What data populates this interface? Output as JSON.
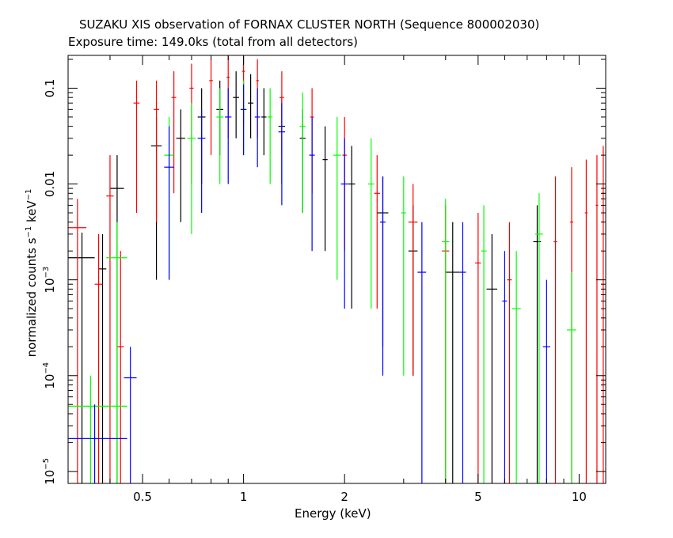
{
  "chart_data": {
    "type": "scatter",
    "title": "SUZAKU XIS observation of FORNAX CLUSTER NORTH (Sequence 800002030)",
    "subtitle": "Exposure time: 149.0ks (total from all detectors)",
    "xlabel": "Energy (keV)",
    "ylabel": {
      "base": "normalized counts s",
      "exp1": "−1",
      "mid": " keV",
      "exp2": "−1"
    },
    "x_scale": "log",
    "y_scale": "log",
    "xlim": [
      0.3,
      12
    ],
    "ylim": [
      7.5e-06,
      0.22
    ],
    "x_ticks": [
      {
        "value": 0.5,
        "label": "0.5"
      },
      {
        "value": 1,
        "label": "1"
      },
      {
        "value": 2,
        "label": "2"
      },
      {
        "value": 5,
        "label": "5"
      },
      {
        "value": 10,
        "label": "10"
      }
    ],
    "y_ticks": [
      {
        "value": 0.1,
        "label": "0.1"
      },
      {
        "value": 0.01,
        "label": "0.01"
      },
      {
        "value": 0.001,
        "label": "10",
        "exp": "−3"
      },
      {
        "value": 0.0001,
        "label": "10",
        "exp": "−4"
      },
      {
        "value": 1e-05,
        "label": "10",
        "exp": "−5"
      }
    ],
    "grid": false,
    "colors": {
      "black": "#000000",
      "red": "#ff0000",
      "green": "#00ff00",
      "blue": "#0000ff"
    },
    "series": [
      {
        "color": "#000000",
        "points": [
          [
            0.33,
            0.0017,
            0.0,
            0.0031,
            0.36,
            0.3
          ],
          [
            0.38,
            0.0013,
            0.0,
            0.003,
            0.39,
            0.37
          ],
          [
            0.42,
            0.009,
            0.0,
            0.02,
            0.44,
            0.4
          ],
          [
            0.55,
            0.025,
            0.001,
            0.05,
            0.57,
            0.53
          ],
          [
            0.65,
            0.03,
            0.004,
            0.06,
            0.67,
            0.63
          ],
          [
            0.75,
            0.05,
            0.01,
            0.1,
            0.77,
            0.73
          ],
          [
            0.85,
            0.06,
            0.02,
            0.12,
            0.87,
            0.83
          ],
          [
            0.95,
            0.08,
            0.03,
            0.15,
            0.97,
            0.93
          ],
          [
            1.05,
            0.07,
            0.03,
            0.14,
            1.07,
            1.03
          ],
          [
            1.15,
            0.05,
            0.02,
            0.1,
            1.17,
            1.13
          ],
          [
            1.3,
            0.04,
            0.01,
            0.08,
            1.33,
            1.27
          ],
          [
            1.5,
            0.03,
            0.005,
            0.06,
            1.53,
            1.47
          ],
          [
            1.75,
            0.018,
            0.002,
            0.04,
            1.78,
            1.72
          ],
          [
            2.1,
            0.01,
            0.0005,
            0.025,
            2.15,
            2.05
          ],
          [
            2.6,
            0.005,
            0.0002,
            0.012,
            2.7,
            2.5
          ],
          [
            3.2,
            0.002,
            0.0001,
            0.006,
            3.3,
            3.1
          ],
          [
            4.2,
            0.0012,
            0.0,
            0.004,
            4.4,
            4.0
          ],
          [
            5.5,
            0.0008,
            0.0,
            0.003,
            5.7,
            5.3
          ],
          [
            7.5,
            0.0025,
            0.0,
            0.006,
            7.7,
            7.3
          ]
        ]
      },
      {
        "color": "#ff0000",
        "points": [
          [
            0.32,
            0.0035,
            0.0,
            0.007,
            0.34,
            0.3
          ],
          [
            0.37,
            0.0009,
            0.0,
            0.003,
            0.38,
            0.36
          ],
          [
            0.4,
            0.0075,
            0.0,
            0.02,
            0.41,
            0.39
          ],
          [
            0.43,
            0.0002,
            0.0,
            0.002,
            0.44,
            0.42
          ],
          [
            0.48,
            0.07,
            0.005,
            0.12,
            0.49,
            0.47
          ],
          [
            0.55,
            0.06,
            0.004,
            0.12,
            0.56,
            0.54
          ],
          [
            0.62,
            0.08,
            0.008,
            0.15,
            0.63,
            0.61
          ],
          [
            0.7,
            0.1,
            0.01,
            0.18,
            0.71,
            0.69
          ],
          [
            0.8,
            0.12,
            0.02,
            0.2,
            0.81,
            0.79
          ],
          [
            0.9,
            0.13,
            0.03,
            0.22,
            0.91,
            0.89
          ],
          [
            1.0,
            0.15,
            0.04,
            0.22,
            1.01,
            0.99
          ],
          [
            1.1,
            0.12,
            0.03,
            0.2,
            1.11,
            1.09
          ],
          [
            1.3,
            0.08,
            0.02,
            0.15,
            1.32,
            1.28
          ],
          [
            1.6,
            0.05,
            0.008,
            0.1,
            1.62,
            1.58
          ],
          [
            2.0,
            0.02,
            0.002,
            0.05,
            2.03,
            1.97
          ],
          [
            2.5,
            0.008,
            0.0005,
            0.02,
            2.55,
            2.45
          ],
          [
            3.2,
            0.004,
            0.0001,
            0.01,
            3.3,
            3.1
          ],
          [
            4.0,
            0.002,
            0.0,
            0.006,
            4.1,
            3.9
          ],
          [
            5.0,
            0.0015,
            0.0,
            0.005,
            5.1,
            4.9
          ],
          [
            6.2,
            0.001,
            0.0,
            0.004,
            6.3,
            6.1
          ],
          [
            8.5,
            0.0025,
            0.0,
            0.012,
            8.6,
            8.4
          ],
          [
            9.5,
            0.004,
            0.0,
            0.015,
            9.6,
            9.4
          ],
          [
            10.5,
            0.005,
            0.0,
            0.018,
            10.6,
            10.4
          ],
          [
            11.3,
            0.006,
            0.0,
            0.02,
            11.4,
            11.2
          ],
          [
            11.8,
            0.008,
            0.0,
            0.025,
            11.9,
            11.7
          ]
        ]
      },
      {
        "color": "#00ff00",
        "points": [
          [
            0.35,
            4.8e-05,
            0.0,
            0.0001,
            0.45,
            0.3
          ],
          [
            0.42,
            0.0017,
            0.0,
            0.004,
            0.45,
            0.39
          ],
          [
            0.6,
            0.02,
            0.001,
            0.05,
            0.62,
            0.58
          ],
          [
            0.7,
            0.03,
            0.003,
            0.07,
            0.72,
            0.68
          ],
          [
            0.85,
            0.05,
            0.01,
            0.1,
            0.87,
            0.83
          ],
          [
            1.0,
            0.06,
            0.02,
            0.12,
            1.02,
            0.98
          ],
          [
            1.2,
            0.05,
            0.01,
            0.1,
            1.22,
            1.18
          ],
          [
            1.5,
            0.04,
            0.005,
            0.09,
            1.53,
            1.47
          ],
          [
            1.9,
            0.02,
            0.001,
            0.05,
            1.95,
            1.85
          ],
          [
            2.4,
            0.01,
            0.0005,
            0.03,
            2.45,
            2.35
          ],
          [
            3.0,
            0.005,
            0.0001,
            0.012,
            3.05,
            2.95
          ],
          [
            4.0,
            0.0025,
            0.0,
            0.007,
            4.1,
            3.9
          ],
          [
            5.2,
            0.002,
            0.0,
            0.006,
            5.3,
            5.1
          ],
          [
            6.5,
            0.0005,
            0.0,
            0.002,
            6.7,
            6.3
          ],
          [
            7.6,
            0.003,
            0.0,
            0.008,
            7.8,
            7.4
          ],
          [
            9.5,
            0.0003,
            0.0,
            0.0012,
            9.8,
            9.2
          ]
        ]
      },
      {
        "color": "#0000ff",
        "points": [
          [
            0.36,
            2.2e-05,
            0.0,
            5e-05,
            0.45,
            0.3
          ],
          [
            0.46,
            9.5e-05,
            0.0,
            0.0002,
            0.48,
            0.44
          ],
          [
            0.6,
            0.015,
            0.001,
            0.04,
            0.62,
            0.58
          ],
          [
            0.75,
            0.03,
            0.005,
            0.06,
            0.77,
            0.73
          ],
          [
            0.9,
            0.05,
            0.01,
            0.1,
            0.92,
            0.88
          ],
          [
            1.0,
            0.06,
            0.02,
            0.11,
            1.02,
            0.98
          ],
          [
            1.1,
            0.05,
            0.015,
            0.1,
            1.12,
            1.08
          ],
          [
            1.3,
            0.035,
            0.006,
            0.07,
            1.33,
            1.27
          ],
          [
            1.6,
            0.02,
            0.002,
            0.05,
            1.63,
            1.57
          ],
          [
            2.0,
            0.01,
            0.0005,
            0.03,
            2.05,
            1.95
          ],
          [
            2.6,
            0.004,
            0.0001,
            0.012,
            2.65,
            2.55
          ],
          [
            3.4,
            0.0012,
            0.0,
            0.004,
            3.5,
            3.3
          ],
          [
            4.5,
            0.0012,
            0.0,
            0.004,
            4.6,
            4.4
          ],
          [
            6.0,
            0.0006,
            0.0,
            0.002,
            6.1,
            5.9
          ],
          [
            8.0,
            0.0002,
            0.0,
            0.001,
            8.2,
            7.8
          ]
        ]
      }
    ]
  }
}
